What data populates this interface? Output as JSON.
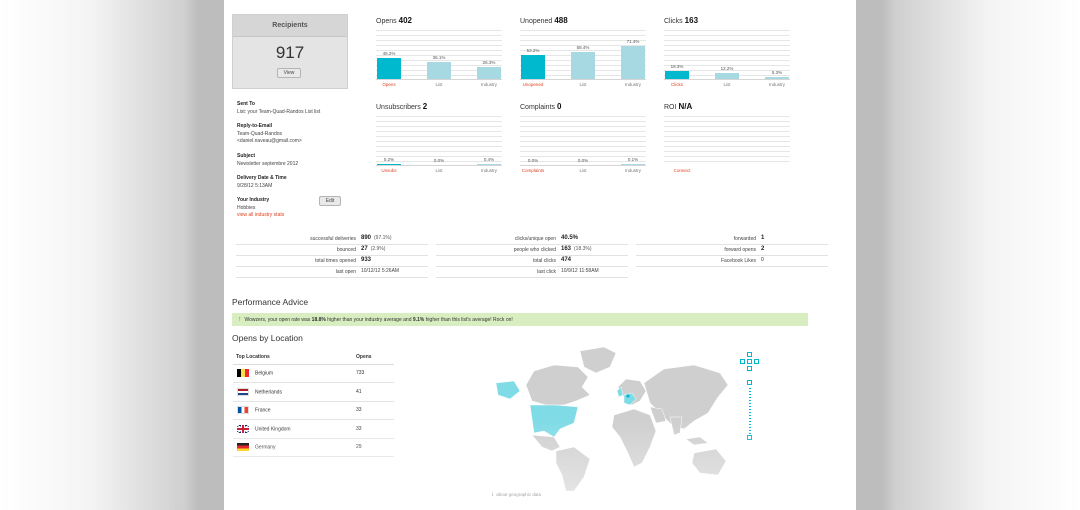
{
  "recipients": {
    "title": "Recipients",
    "count": "917",
    "view_label": "View"
  },
  "info": {
    "sent_to_label": "Sent To",
    "sent_to_value": "List: your Team-Quad-Randos List list",
    "reply_label": "Reply-to-Email",
    "reply_name": "Team-Quad-Randos",
    "reply_email": "<daniel.naveau@gmail.com>",
    "subject_label": "Subject",
    "subject_value": "Newsletter septembre 2012",
    "delivery_label": "Delivery Date & Time",
    "delivery_value": "9/28/12 5:13AM",
    "industry_label": "Your Industry",
    "industry_value": "Hobbies",
    "industry_link": "view all industry stats",
    "edit_label": "Edit"
  },
  "stats": [
    {
      "title": "Opens",
      "value": "402",
      "bars": [
        {
          "pct": "45.2%",
          "value": 45.2,
          "label": "Opens"
        },
        {
          "pct": "36.1%",
          "value": 36.1,
          "label": "List"
        },
        {
          "pct": "26.3%",
          "value": 26.3,
          "label": "Industry"
        }
      ]
    },
    {
      "title": "Unopened",
      "value": "488",
      "bars": [
        {
          "pct": "53.2%",
          "value": 53.2,
          "label": "Unopened"
        },
        {
          "pct": "58.4%",
          "value": 58.4,
          "label": "List"
        },
        {
          "pct": "71.4%",
          "value": 71.4,
          "label": "Industry"
        }
      ]
    },
    {
      "title": "Clicks",
      "value": "163",
      "bars": [
        {
          "pct": "18.3%",
          "value": 18.3,
          "label": "Clicks"
        },
        {
          "pct": "12.2%",
          "value": 12.2,
          "label": "List"
        },
        {
          "pct": "5.3%",
          "value": 5.3,
          "label": "Industry"
        }
      ]
    },
    {
      "title": "Unsubscribers",
      "value": "2",
      "bars": [
        {
          "pct": "0.2%",
          "value": 0.2,
          "label": "Unsubs"
        },
        {
          "pct": "0.0%",
          "value": 0.0,
          "label": "List"
        },
        {
          "pct": "0.4%",
          "value": 0.4,
          "label": "Industry"
        }
      ]
    },
    {
      "title": "Complaints",
      "value": "0",
      "bars": [
        {
          "pct": "0.0%",
          "value": 0.0,
          "label": "Complaints"
        },
        {
          "pct": "0.0%",
          "value": 0.0,
          "label": "List"
        },
        {
          "pct": "0.1%",
          "value": 0.1,
          "label": "Industry"
        }
      ]
    },
    {
      "title": "ROI",
      "value": "N/A",
      "bars": [],
      "link": "Connect"
    }
  ],
  "metrics": {
    "col1": [
      {
        "key": "successful deliveries",
        "value": "890",
        "pct": "(97.1%)"
      },
      {
        "key": "bounced",
        "value": "27",
        "pct": "(2.9%)"
      },
      {
        "key": "total times opened",
        "value": "933",
        "pct": ""
      },
      {
        "key": "last open",
        "value": "10/12/12 5:26AM",
        "pct": ""
      }
    ],
    "col2": [
      {
        "key": "clicks/unique open",
        "value": "40.5%",
        "pct": ""
      },
      {
        "key": "people who clicked",
        "value": "163",
        "pct": "(18.3%)"
      },
      {
        "key": "total clicks",
        "value": "474",
        "pct": ""
      },
      {
        "key": "last click",
        "value": "10/9/12 11:58AM",
        "pct": ""
      }
    ],
    "col3": [
      {
        "key": "forwarded",
        "value": "1",
        "pct": ""
      },
      {
        "key": "forward opens",
        "value": "2",
        "pct": ""
      },
      {
        "key": "Facebook Likes",
        "value": "0",
        "pct": ""
      }
    ]
  },
  "advice": {
    "title": "Performance Advice",
    "text_1": "Wowzers, your open rate was ",
    "v1": "18.8%",
    "text_2": " higher than your industry average and ",
    "v2": "9.1%",
    "text_3": " higher than this list's average! Rock on!"
  },
  "locations": {
    "title": "Opens by Location",
    "col_location": "Top Locations",
    "col_opens": "Opens",
    "rows": [
      {
        "country": "Belgium",
        "opens": "733"
      },
      {
        "country": "Netherlands",
        "opens": "41"
      },
      {
        "country": "France",
        "opens": "33"
      },
      {
        "country": "United Kingdom",
        "opens": "33"
      },
      {
        "country": "Germany",
        "opens": "29"
      }
    ],
    "footer": "about geographic data"
  },
  "colors": {
    "accent": "#00b9cf",
    "accent_light": "#a6d9e1",
    "link_red": "#e0421e",
    "advice_bg": "#d8edc0"
  }
}
